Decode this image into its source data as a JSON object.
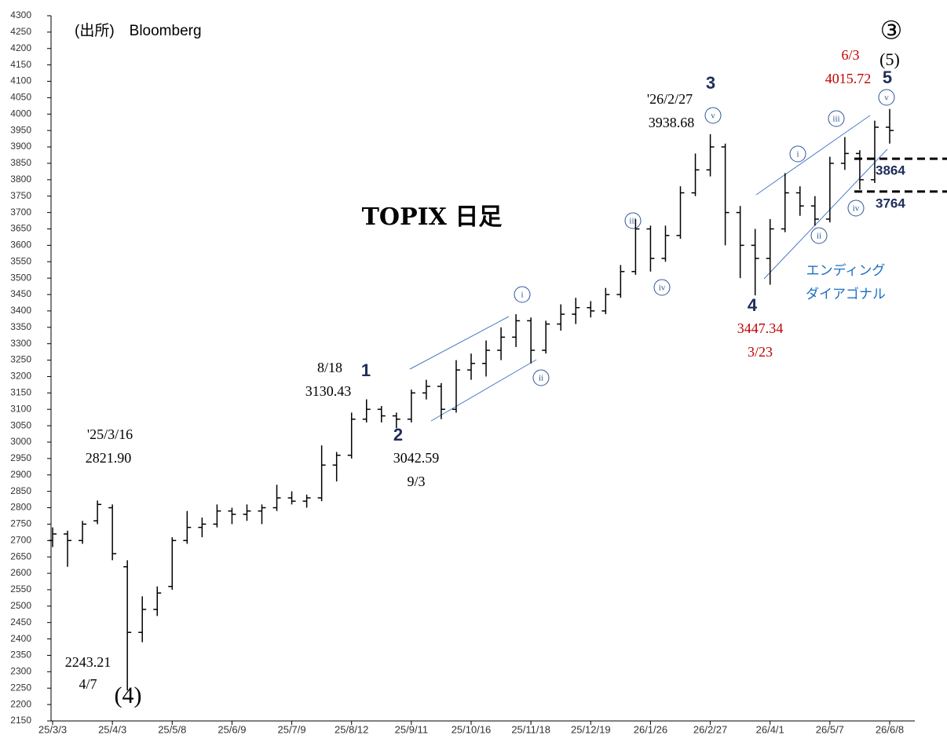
{
  "chart_data": {
    "type": "ohlc",
    "title": "TOPIX 日足",
    "source": "(出所)　Bloomberg",
    "categories": [
      "25/3/3",
      null,
      null,
      null,
      "25/4/3",
      null,
      null,
      null,
      "25/5/8",
      null,
      null,
      null,
      "25/6/9",
      null,
      null,
      null,
      "25/7/9",
      null,
      null,
      null,
      "25/8/12",
      null,
      null,
      null,
      "25/9/11",
      null,
      null,
      null,
      "25/10/16",
      null,
      null,
      null,
      "25/11/18",
      null,
      null,
      null,
      "25/12/19",
      null,
      null,
      null,
      "26/1/26",
      null,
      null,
      null,
      "26/2/27",
      null,
      null,
      null,
      "26/4/1",
      null,
      null,
      null,
      "26/5/7",
      null,
      null,
      null,
      "26/6/8"
    ],
    "color": "#000000",
    "open": [
      2700,
      2720,
      2700,
      2760,
      2800,
      2620,
      2420,
      2490,
      2560,
      2700,
      2740,
      2750,
      2790,
      2780,
      2790,
      2800,
      2830,
      2820,
      2830,
      2930,
      2960,
      3070,
      3100,
      3080,
      3070,
      3150,
      3170,
      3100,
      3220,
      3240,
      3280,
      3320,
      3370,
      3280,
      3360,
      3390,
      3410,
      3400,
      3450,
      3520,
      3650,
      3560,
      3630,
      3760,
      3830,
      3900,
      3700,
      3600,
      3560,
      3650,
      3760,
      3720,
      3680,
      3850,
      3880,
      3800,
      3960
    ],
    "high": [
      2740,
      2730,
      2760,
      2821.9,
      2810,
      2640,
      2530,
      2560,
      2710,
      2790,
      2770,
      2810,
      2800,
      2810,
      2810,
      2870,
      2850,
      2840,
      2990,
      2970,
      3090,
      3130.43,
      3110,
      3090,
      3160,
      3190,
      3180,
      3250,
      3270,
      3310,
      3350,
      3390,
      3380,
      3370,
      3420,
      3440,
      3430,
      3470,
      3540,
      3680,
      3660,
      3660,
      3780,
      3880,
      3938.68,
      3910,
      3720,
      3650,
      3680,
      3820,
      3780,
      3750,
      3870,
      3930,
      3890,
      3980,
      4015.72
    ],
    "low": [
      2680,
      2620,
      2690,
      2750,
      2640,
      2243.21,
      2390,
      2470,
      2550,
      2690,
      2710,
      2740,
      2750,
      2760,
      2750,
      2790,
      2810,
      2800,
      2820,
      2880,
      2950,
      3060,
      3060,
      3042.59,
      3060,
      3130,
      3070,
      3090,
      3190,
      3200,
      3250,
      3290,
      3240,
      3270,
      3340,
      3360,
      3380,
      3390,
      3440,
      3510,
      3520,
      3550,
      3620,
      3750,
      3810,
      3600,
      3500,
      3447.34,
      3480,
      3640,
      3690,
      3660,
      3670,
      3830,
      3770,
      3790,
      3910
    ],
    "close": [
      2720,
      2700,
      2750,
      2810,
      2660,
      2420,
      2490,
      2540,
      2700,
      2740,
      2750,
      2790,
      2780,
      2790,
      2800,
      2830,
      2820,
      2830,
      2930,
      2960,
      3070,
      3100,
      3080,
      3070,
      3150,
      3170,
      3100,
      3220,
      3240,
      3280,
      3320,
      3370,
      3280,
      3360,
      3390,
      3410,
      3400,
      3450,
      3520,
      3650,
      3560,
      3630,
      3760,
      3830,
      3900,
      3700,
      3600,
      3560,
      3650,
      3760,
      3720,
      3680,
      3850,
      3880,
      3800,
      3960,
      3950
    ],
    "ylim": [
      2150,
      4300
    ],
    "yticks": [
      2150,
      2200,
      2250,
      2300,
      2350,
      2400,
      2450,
      2500,
      2550,
      2600,
      2650,
      2700,
      2750,
      2800,
      2850,
      2900,
      2950,
      3000,
      3050,
      3100,
      3150,
      3200,
      3250,
      3300,
      3350,
      3400,
      3450,
      3500,
      3550,
      3600,
      3650,
      3700,
      3750,
      3800,
      3850,
      3900,
      3950,
      4000,
      4050,
      4100,
      4150,
      4200,
      4250,
      4300
    ],
    "levels": [
      3864,
      3764
    ],
    "annotations": [
      "'25/3/16",
      "2821.90",
      "2243.21",
      "4/7",
      "(4)",
      "8/18",
      "3130.43",
      "1",
      "2",
      "3042.59",
      "9/3",
      "3",
      "'26/2/27",
      "3938.68",
      "4",
      "3447.34",
      "3/23",
      "③",
      "(5)",
      "5",
      "6/3",
      "4015.72",
      "エンディング",
      "ダイアゴナル"
    ],
    "waves": [
      "i",
      "ii",
      "iii",
      "iv",
      "v",
      "i",
      "ii",
      "iii",
      "iv",
      "v"
    ]
  }
}
